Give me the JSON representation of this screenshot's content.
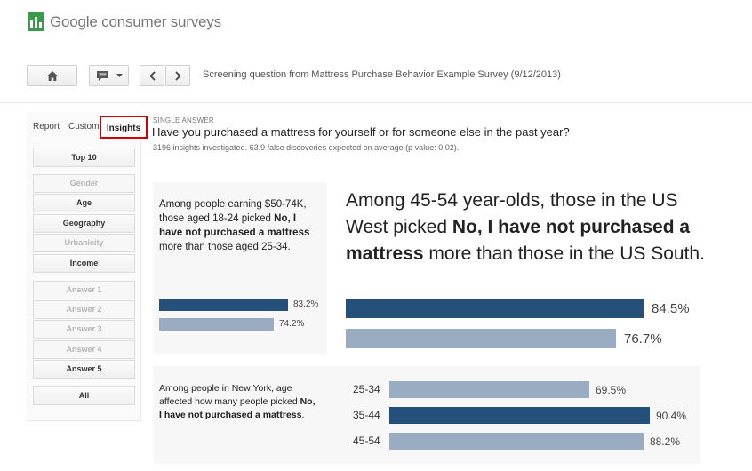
{
  "app": {
    "title": "Google consumer surveys",
    "brand_color": "#3a9a4a"
  },
  "toolbar": {
    "home_icon": "home-icon",
    "comment_icon": "comment-icon",
    "breadcrumb": "Screening question from Mattress Purchase Behavior Example Survey (9/12/2013)"
  },
  "tabs": [
    {
      "label": "Report"
    },
    {
      "label": "Custom"
    },
    {
      "label": "Insights"
    }
  ],
  "sidebar": {
    "top": "Top 10",
    "dimensions": [
      {
        "label": "Gender",
        "enabled": false
      },
      {
        "label": "Age",
        "enabled": true
      },
      {
        "label": "Geography",
        "enabled": true
      },
      {
        "label": "Urbanicity",
        "enabled": false
      },
      {
        "label": "Income",
        "enabled": true
      }
    ],
    "answers": [
      {
        "label": "Answer 1",
        "enabled": false
      },
      {
        "label": "Answer 2",
        "enabled": false
      },
      {
        "label": "Answer 3",
        "enabled": false
      },
      {
        "label": "Answer 4",
        "enabled": false
      },
      {
        "label": "Answer 5",
        "enabled": true
      }
    ],
    "all": "All"
  },
  "question": {
    "type_label": "SINGLE ANSWER",
    "text": "Have you purchased a mattress for yourself or for someone else in the past year?",
    "summary": "3196 insights investigated. 63.9 false discoveries expected on average (p value: 0.02)."
  },
  "insights": [
    {
      "pre": "Among people earning $50-74K, those aged 18-24 picked ",
      "bold": "No, I have not purchased a mattress",
      "post": " more than those aged 25-34.",
      "bars": [
        {
          "value": 83.2,
          "label": "83.2%",
          "color": "#25507a"
        },
        {
          "value": 74.2,
          "label": "74.2%",
          "color": "#9aacc1"
        }
      ]
    },
    {
      "pre": "Among 45-54 year-olds, those in the US West picked ",
      "bold": "No, I have not purchased a mattress",
      "post": " more than those in the US South.",
      "bars": [
        {
          "value": 84.5,
          "label": "84.5%",
          "color": "#25507a"
        },
        {
          "value": 76.7,
          "label": "76.7%",
          "color": "#9aacc1"
        }
      ]
    },
    {
      "pre": "Among people in New York, age affected how many people picked ",
      "bold": "No, I have not purchased a mattress",
      "post": ".",
      "bars": [
        {
          "category": "25-34",
          "value": 69.5,
          "label": "69.5%",
          "color": "#9aacc1"
        },
        {
          "category": "35-44",
          "value": 90.4,
          "label": "90.4%",
          "color": "#25507a"
        },
        {
          "category": "45-54",
          "value": 88.2,
          "label": "88.2%",
          "color": "#9aacc1"
        }
      ]
    }
  ]
}
